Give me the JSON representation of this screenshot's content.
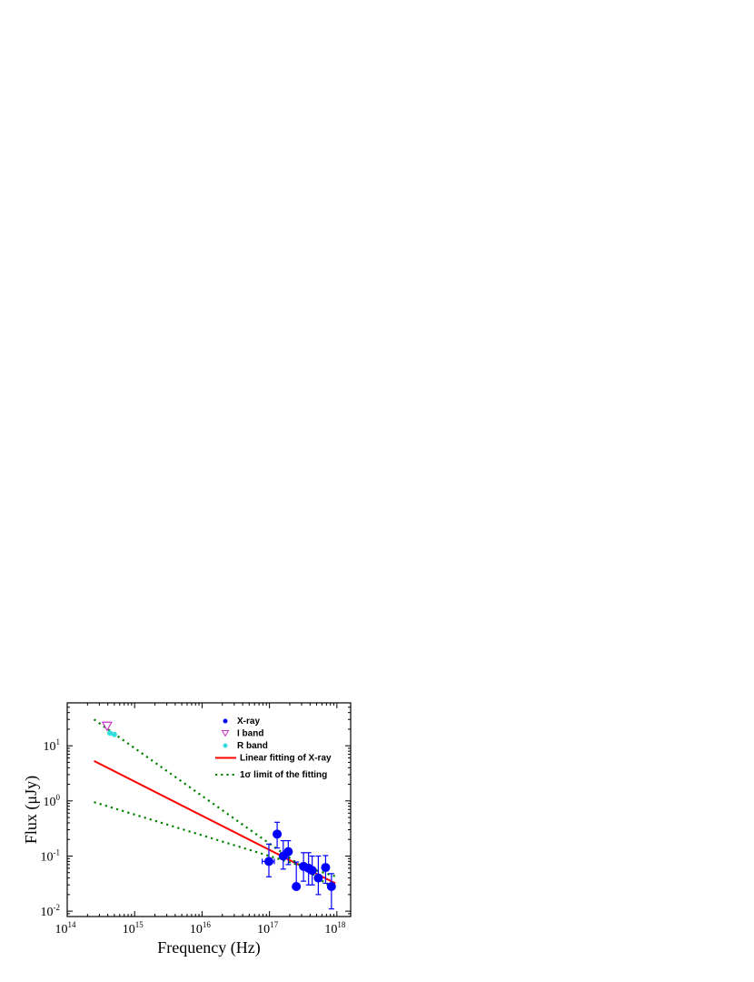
{
  "chart_data": {
    "type": "scatter",
    "xlabel": "Frequency (Hz)",
    "ylabel": "Flux (μJy)",
    "x_scale": "log",
    "y_scale": "log",
    "xlim": [
      100000000000000.0,
      1.6e+18
    ],
    "ylim": [
      0.008,
      60
    ],
    "x_ticks": [
      {
        "value": 100000000000000.0,
        "base": "10",
        "exp": "14"
      },
      {
        "value": 1000000000000000.0,
        "base": "10",
        "exp": "15"
      },
      {
        "value": 1e+16,
        "base": "10",
        "exp": "16"
      },
      {
        "value": 1e+17,
        "base": "10",
        "exp": "17"
      },
      {
        "value": 1e+18,
        "base": "10",
        "exp": "18"
      }
    ],
    "y_ticks": [
      {
        "value": 0.01,
        "base": "10",
        "exp": "-2"
      },
      {
        "value": 0.1,
        "base": "10",
        "exp": "-1"
      },
      {
        "value": 1,
        "base": "10",
        "exp": "0"
      },
      {
        "value": 10,
        "base": "10",
        "exp": "1"
      }
    ],
    "grid": false,
    "legend_position": "top-right",
    "series": [
      {
        "name": "X-ray",
        "kind": "points",
        "marker": "circle",
        "color": "#0000ff",
        "points": [
          {
            "x": 9.8e+16,
            "y": 0.08,
            "xerr": [
              2e+16,
              2e+16
            ],
            "yerr": [
              0.038,
              0.085
            ]
          },
          {
            "x": 1.3e+17,
            "y": 0.25,
            "xerr": [
              0,
              0
            ],
            "yerr": [
              0.11,
              0.16
            ]
          },
          {
            "x": 1.6e+17,
            "y": 0.1,
            "xerr": [
              0,
              0
            ],
            "yerr": [
              0.042,
              0.09
            ]
          },
          {
            "x": 1.9e+17,
            "y": 0.12,
            "xerr": [
              0,
              0
            ],
            "yerr": [
              0.05,
              0.07
            ]
          },
          {
            "x": 2.5e+17,
            "y": 0.028,
            "xerr": [
              0,
              0
            ],
            "yerr": [
              0.0,
              0.05
            ]
          },
          {
            "x": 3.2e+17,
            "y": 0.065,
            "xerr": [
              0,
              0
            ],
            "yerr": [
              0.03,
              0.05
            ]
          },
          {
            "x": 3.8e+17,
            "y": 0.06,
            "xerr": [
              0,
              0
            ],
            "yerr": [
              0.03,
              0.055
            ]
          },
          {
            "x": 4.3e+17,
            "y": 0.055,
            "xerr": [
              0,
              0
            ],
            "yerr": [
              0.025,
              0.045
            ]
          },
          {
            "x": 5.3e+17,
            "y": 0.04,
            "xerr": [
              0,
              0
            ],
            "yerr": [
              0.02,
              0.06
            ]
          },
          {
            "x": 6.8e+17,
            "y": 0.062,
            "xerr": [
              0,
              0
            ],
            "yerr": [
              0.03,
              0.04
            ]
          },
          {
            "x": 8.3e+17,
            "y": 0.028,
            "xerr": [
              0,
              0
            ],
            "yerr": [
              0.017,
              0.02
            ]
          }
        ]
      },
      {
        "name": "I band",
        "kind": "points",
        "marker": "triangle-down-open",
        "color": "#cc33cc",
        "points": [
          {
            "x": 390000000000000.0,
            "y": 23
          }
        ]
      },
      {
        "name": "R band",
        "kind": "points",
        "marker": "circle",
        "color": "#33dddd",
        "points": [
          {
            "x": 430000000000000.0,
            "y": 17
          },
          {
            "x": 500000000000000.0,
            "y": 16
          }
        ]
      },
      {
        "name": "Linear fitting of X-ray",
        "kind": "line",
        "style": "solid",
        "color": "#ff0000",
        "points": [
          {
            "x": 250000000000000.0,
            "y": 5.3
          },
          {
            "x": 9.5e+17,
            "y": 0.032
          }
        ]
      },
      {
        "name": "1σ limit of the fitting",
        "kind": "line",
        "style": "dotted",
        "color": "#008000",
        "show_in_legend": true,
        "points": [
          {
            "x": 250000000000000.0,
            "y": 30
          },
          {
            "x": 9.5e+17,
            "y": 0.024
          }
        ]
      },
      {
        "name": "",
        "kind": "line",
        "style": "dotted",
        "color": "#008000",
        "show_in_legend": false,
        "points": [
          {
            "x": 250000000000000.0,
            "y": 0.95
          },
          {
            "x": 9.5e+17,
            "y": 0.043
          }
        ]
      }
    ]
  }
}
